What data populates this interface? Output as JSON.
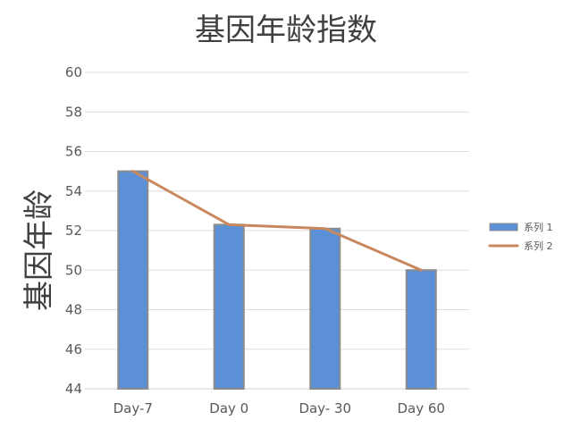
{
  "chart_data": {
    "type": "bar",
    "title": "基因年龄指数",
    "xlabel": "",
    "ylabel": "基因年龄",
    "categories": [
      "Day-7",
      "Day 0",
      "Day- 30",
      "Day 60"
    ],
    "series": [
      {
        "name": "系列 1",
        "type": "bar",
        "values": [
          55.0,
          52.3,
          52.1,
          50.0
        ],
        "color": "#5b8fd6"
      },
      {
        "name": "系列 2",
        "type": "line",
        "values": [
          55.0,
          52.3,
          52.1,
          50.0
        ],
        "color": "#c9875e"
      }
    ],
    "ylim": [
      44,
      60
    ],
    "yticks": [
      44,
      46,
      48,
      50,
      52,
      54,
      56,
      58,
      60
    ],
    "grid": true,
    "legend_position": "right"
  },
  "colors": {
    "bar": "#5b8fd6",
    "bar_edge": "#8c8c8c",
    "line": "#c9875e",
    "grid": "#dddddd",
    "axis": "#cfcfcf"
  }
}
